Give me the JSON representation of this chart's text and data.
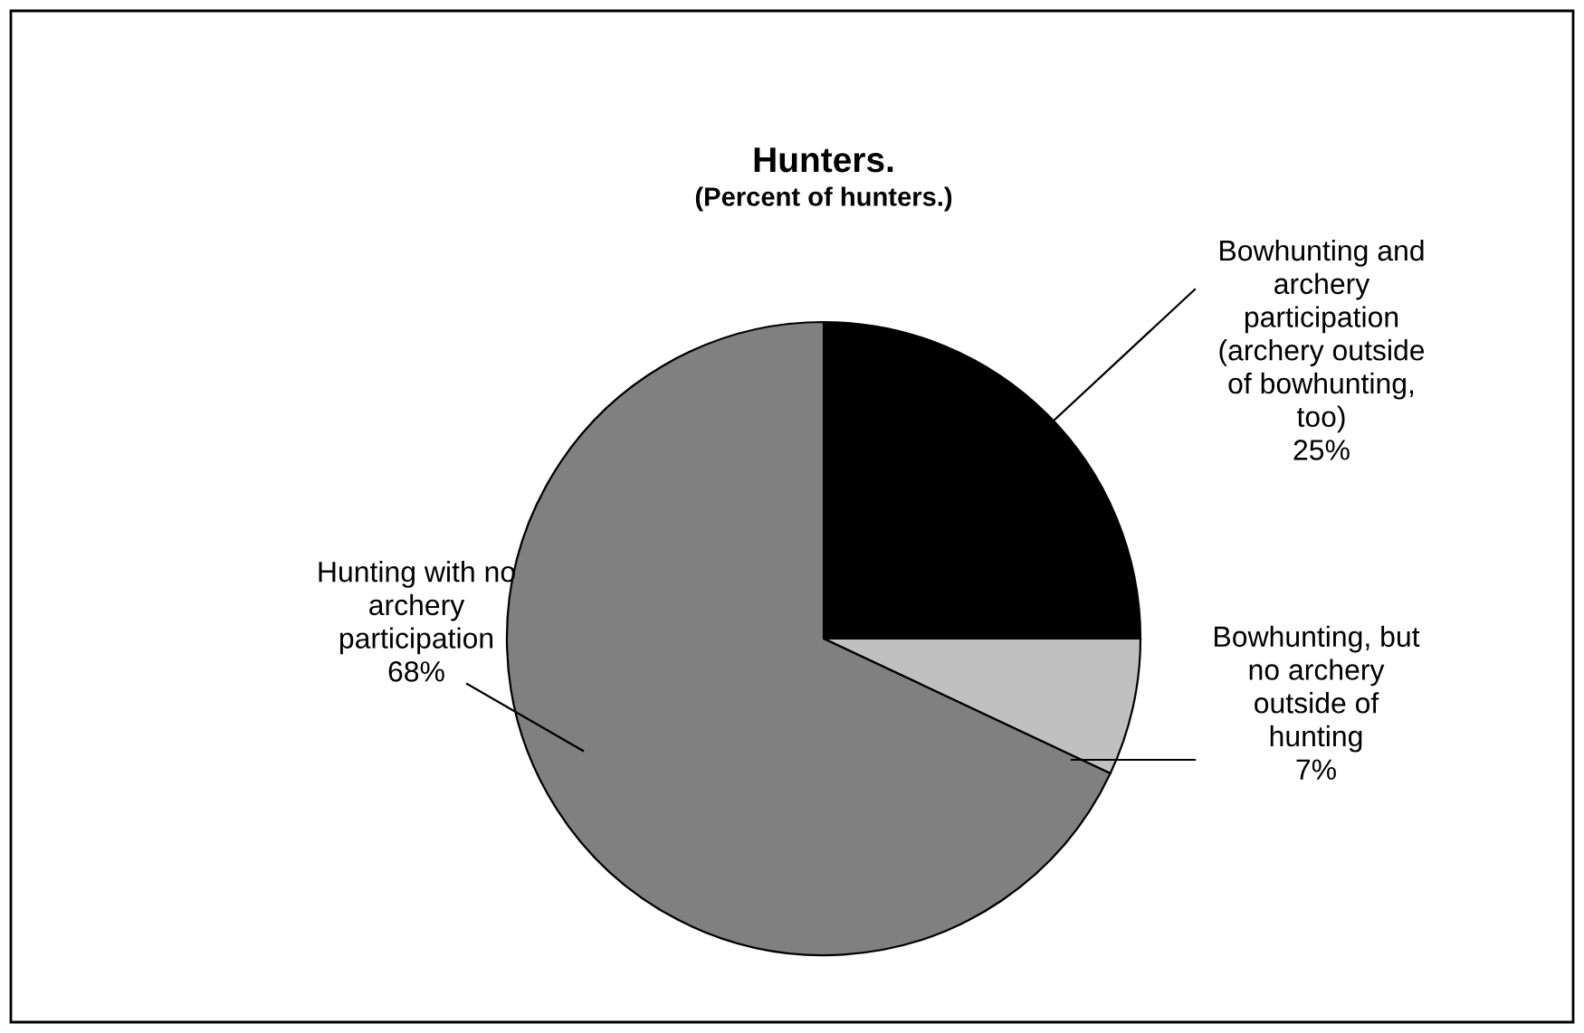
{
  "chart_data": {
    "type": "pie",
    "title": "Hunters.",
    "subtitle": "(Percent of hunters.)",
    "categories": [
      "Bowhunting and\narchery\nparticipation\n(archery outside\nof bowhunting,\ntoo)",
      "Bowhunting, but\nno archery\noutside of\nhunting",
      "Hunting with no\narchery\nparticipation"
    ],
    "values": [
      25,
      7,
      68
    ],
    "value_labels": [
      "25%",
      "7%",
      "68%"
    ],
    "colors": [
      "#000000",
      "#c0c0c0",
      "#808080"
    ]
  }
}
